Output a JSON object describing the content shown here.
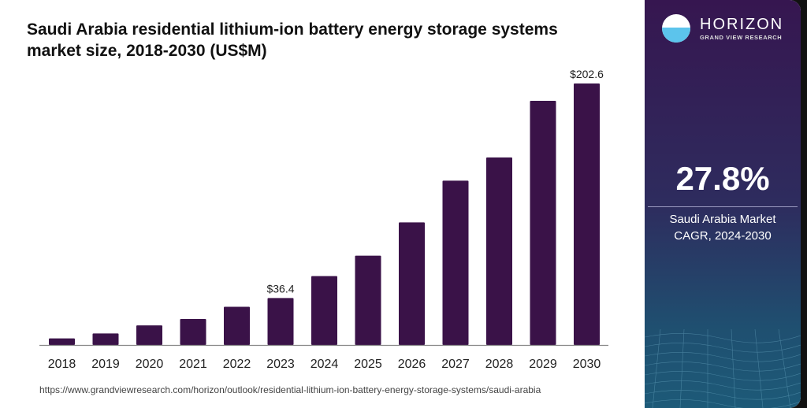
{
  "chart_data": {
    "type": "bar",
    "title": "Saudi Arabia residential lithium-ion battery energy storage systems market size, 2018-2030 (US$M)",
    "categories": [
      "2018",
      "2019",
      "2020",
      "2021",
      "2022",
      "2023",
      "2024",
      "2025",
      "2026",
      "2027",
      "2028",
      "2029",
      "2030"
    ],
    "values": [
      5.1,
      8.9,
      15.2,
      20.1,
      29.6,
      36.4,
      53.4,
      69.2,
      95.0,
      127.3,
      145.3,
      189.2,
      202.6
    ],
    "data_labels": {
      "2023": "$36.4",
      "2030": "$202.6"
    },
    "ylim": [
      0,
      202.6
    ],
    "grid": false,
    "bar_color": "#3a1248"
  },
  "source_url": "https://www.grandviewresearch.com/horizon/outlook/residential-lithium-ion-battery-energy-storage-systems/saudi-arabia",
  "panel": {
    "logo_name": "HORIZON",
    "logo_sub": "GRAND VIEW RESEARCH",
    "cagr_value": "27.8%",
    "cagr_label_line1": "Saudi Arabia Market",
    "cagr_label_line2": "CAGR, 2024-2030"
  }
}
